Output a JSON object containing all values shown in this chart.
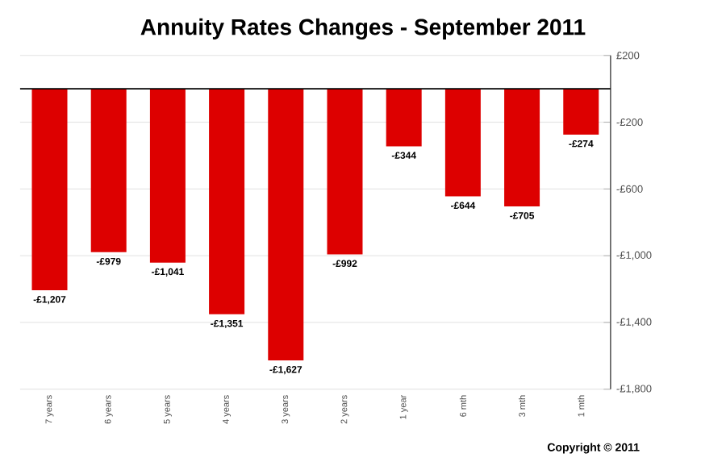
{
  "chart_data": {
    "type": "bar",
    "title": "Annuity Rates Changes - September 2011",
    "categories": [
      "7 years",
      "6 years",
      "5 years",
      "4 years",
      "3 years",
      "2 years",
      "1 year",
      "6 mth",
      "3 mth",
      "1 mth"
    ],
    "values": [
      -1207,
      -979,
      -1041,
      -1351,
      -1627,
      -992,
      -344,
      -644,
      -705,
      -274
    ],
    "value_labels": [
      "-£1,207",
      "-£979",
      "-£1,041",
      "-£1,351",
      "-£1,627",
      "-£992",
      "-£344",
      "-£644",
      "-£705",
      "-£274"
    ],
    "color": "#dd0000",
    "ylim": [
      -1800,
      200
    ],
    "yticks": [
      {
        "value": 200,
        "label": "£200"
      },
      {
        "value": -200,
        "label": "-£200"
      },
      {
        "value": -600,
        "label": "-£600"
      },
      {
        "value": -1000,
        "label": "-£1,000"
      },
      {
        "value": -1400,
        "label": "-£1,400"
      },
      {
        "value": -1800,
        "label": "-£1,800"
      }
    ],
    "grid": "y",
    "annotations": [
      "Copyright © 2011"
    ]
  }
}
